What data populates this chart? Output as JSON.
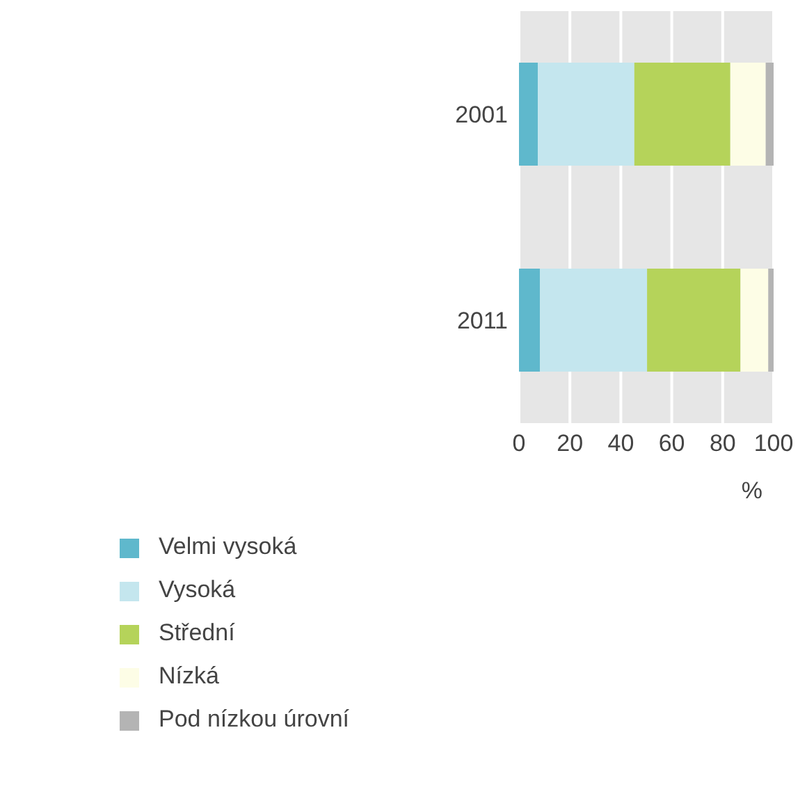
{
  "chart_data": {
    "type": "bar",
    "orientation": "horizontal",
    "stacked": true,
    "categories": [
      "2001",
      "2011"
    ],
    "xlabel": "%",
    "xlim": [
      0,
      100
    ],
    "xticks": [
      0,
      20,
      40,
      60,
      80,
      100
    ],
    "grid": "x",
    "legend": "bottom left",
    "series": [
      {
        "name": "Velmi vysoká",
        "color": "#5fb8cc",
        "values": [
          7.4,
          8.2
        ]
      },
      {
        "name": "Vysoká",
        "color": "#c4e6ee",
        "values": [
          37.9,
          42.1
        ]
      },
      {
        "name": "Střední",
        "color": "#b5d35a",
        "values": [
          37.7,
          36.7
        ]
      },
      {
        "name": "Nízká",
        "color": "#fdfde6",
        "values": [
          13.9,
          10.9
        ]
      },
      {
        "name": "Pod nízkou úrovní",
        "color": "#b4b4b4",
        "values": [
          3.1,
          2.1
        ]
      }
    ]
  }
}
